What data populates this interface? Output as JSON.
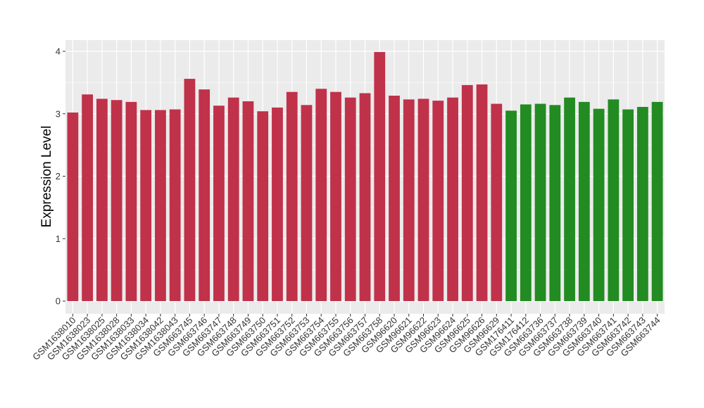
{
  "chart_data": {
    "type": "bar",
    "ylabel": "Expression Level",
    "xlabel": "",
    "ylim": [
      0,
      4.05
    ],
    "yticks": [
      0,
      1,
      2,
      3,
      4
    ],
    "grid": true,
    "panel_background": "#ebebeb",
    "grid_color": "#ffffff",
    "categories": [
      "GSM1638010",
      "GSM1638023",
      "GSM1638025",
      "GSM1638028",
      "GSM1638033",
      "GSM1638034",
      "GSM1638042",
      "GSM1638043",
      "GSM663745",
      "GSM663746",
      "GSM663747",
      "GSM663748",
      "GSM663749",
      "GSM663750",
      "GSM663751",
      "GSM663752",
      "GSM663753",
      "GSM663754",
      "GSM663755",
      "GSM663756",
      "GSM663757",
      "GSM663758",
      "GSM96620",
      "GSM96621",
      "GSM96622",
      "GSM96623",
      "GSM96624",
      "GSM96625",
      "GSM96626",
      "GSM96629",
      "GSM176411",
      "GSM176412",
      "GSM663736",
      "GSM663737",
      "GSM663738",
      "GSM663739",
      "GSM663740",
      "GSM663741",
      "GSM663742",
      "GSM663743",
      "GSM663744"
    ],
    "values": [
      3.02,
      3.31,
      3.24,
      3.22,
      3.19,
      3.06,
      3.06,
      3.07,
      3.56,
      3.39,
      3.13,
      3.26,
      3.2,
      3.04,
      3.1,
      3.35,
      3.14,
      3.4,
      3.35,
      3.26,
      3.33,
      3.99,
      3.29,
      3.23,
      3.24,
      3.21,
      3.26,
      3.46,
      3.47,
      3.16,
      3.05,
      3.15,
      3.16,
      3.14,
      3.26,
      3.19,
      3.08,
      3.23,
      3.07,
      3.11,
      3.19
    ],
    "groups": [
      "red",
      "red",
      "red",
      "red",
      "red",
      "red",
      "red",
      "red",
      "red",
      "red",
      "red",
      "red",
      "red",
      "red",
      "red",
      "red",
      "red",
      "red",
      "red",
      "red",
      "red",
      "red",
      "red",
      "red",
      "red",
      "red",
      "red",
      "red",
      "red",
      "red",
      "green",
      "green",
      "green",
      "green",
      "green",
      "green",
      "green",
      "green",
      "green",
      "green",
      "green"
    ],
    "colors": {
      "red": "#c0314a",
      "green": "#228b22"
    }
  }
}
